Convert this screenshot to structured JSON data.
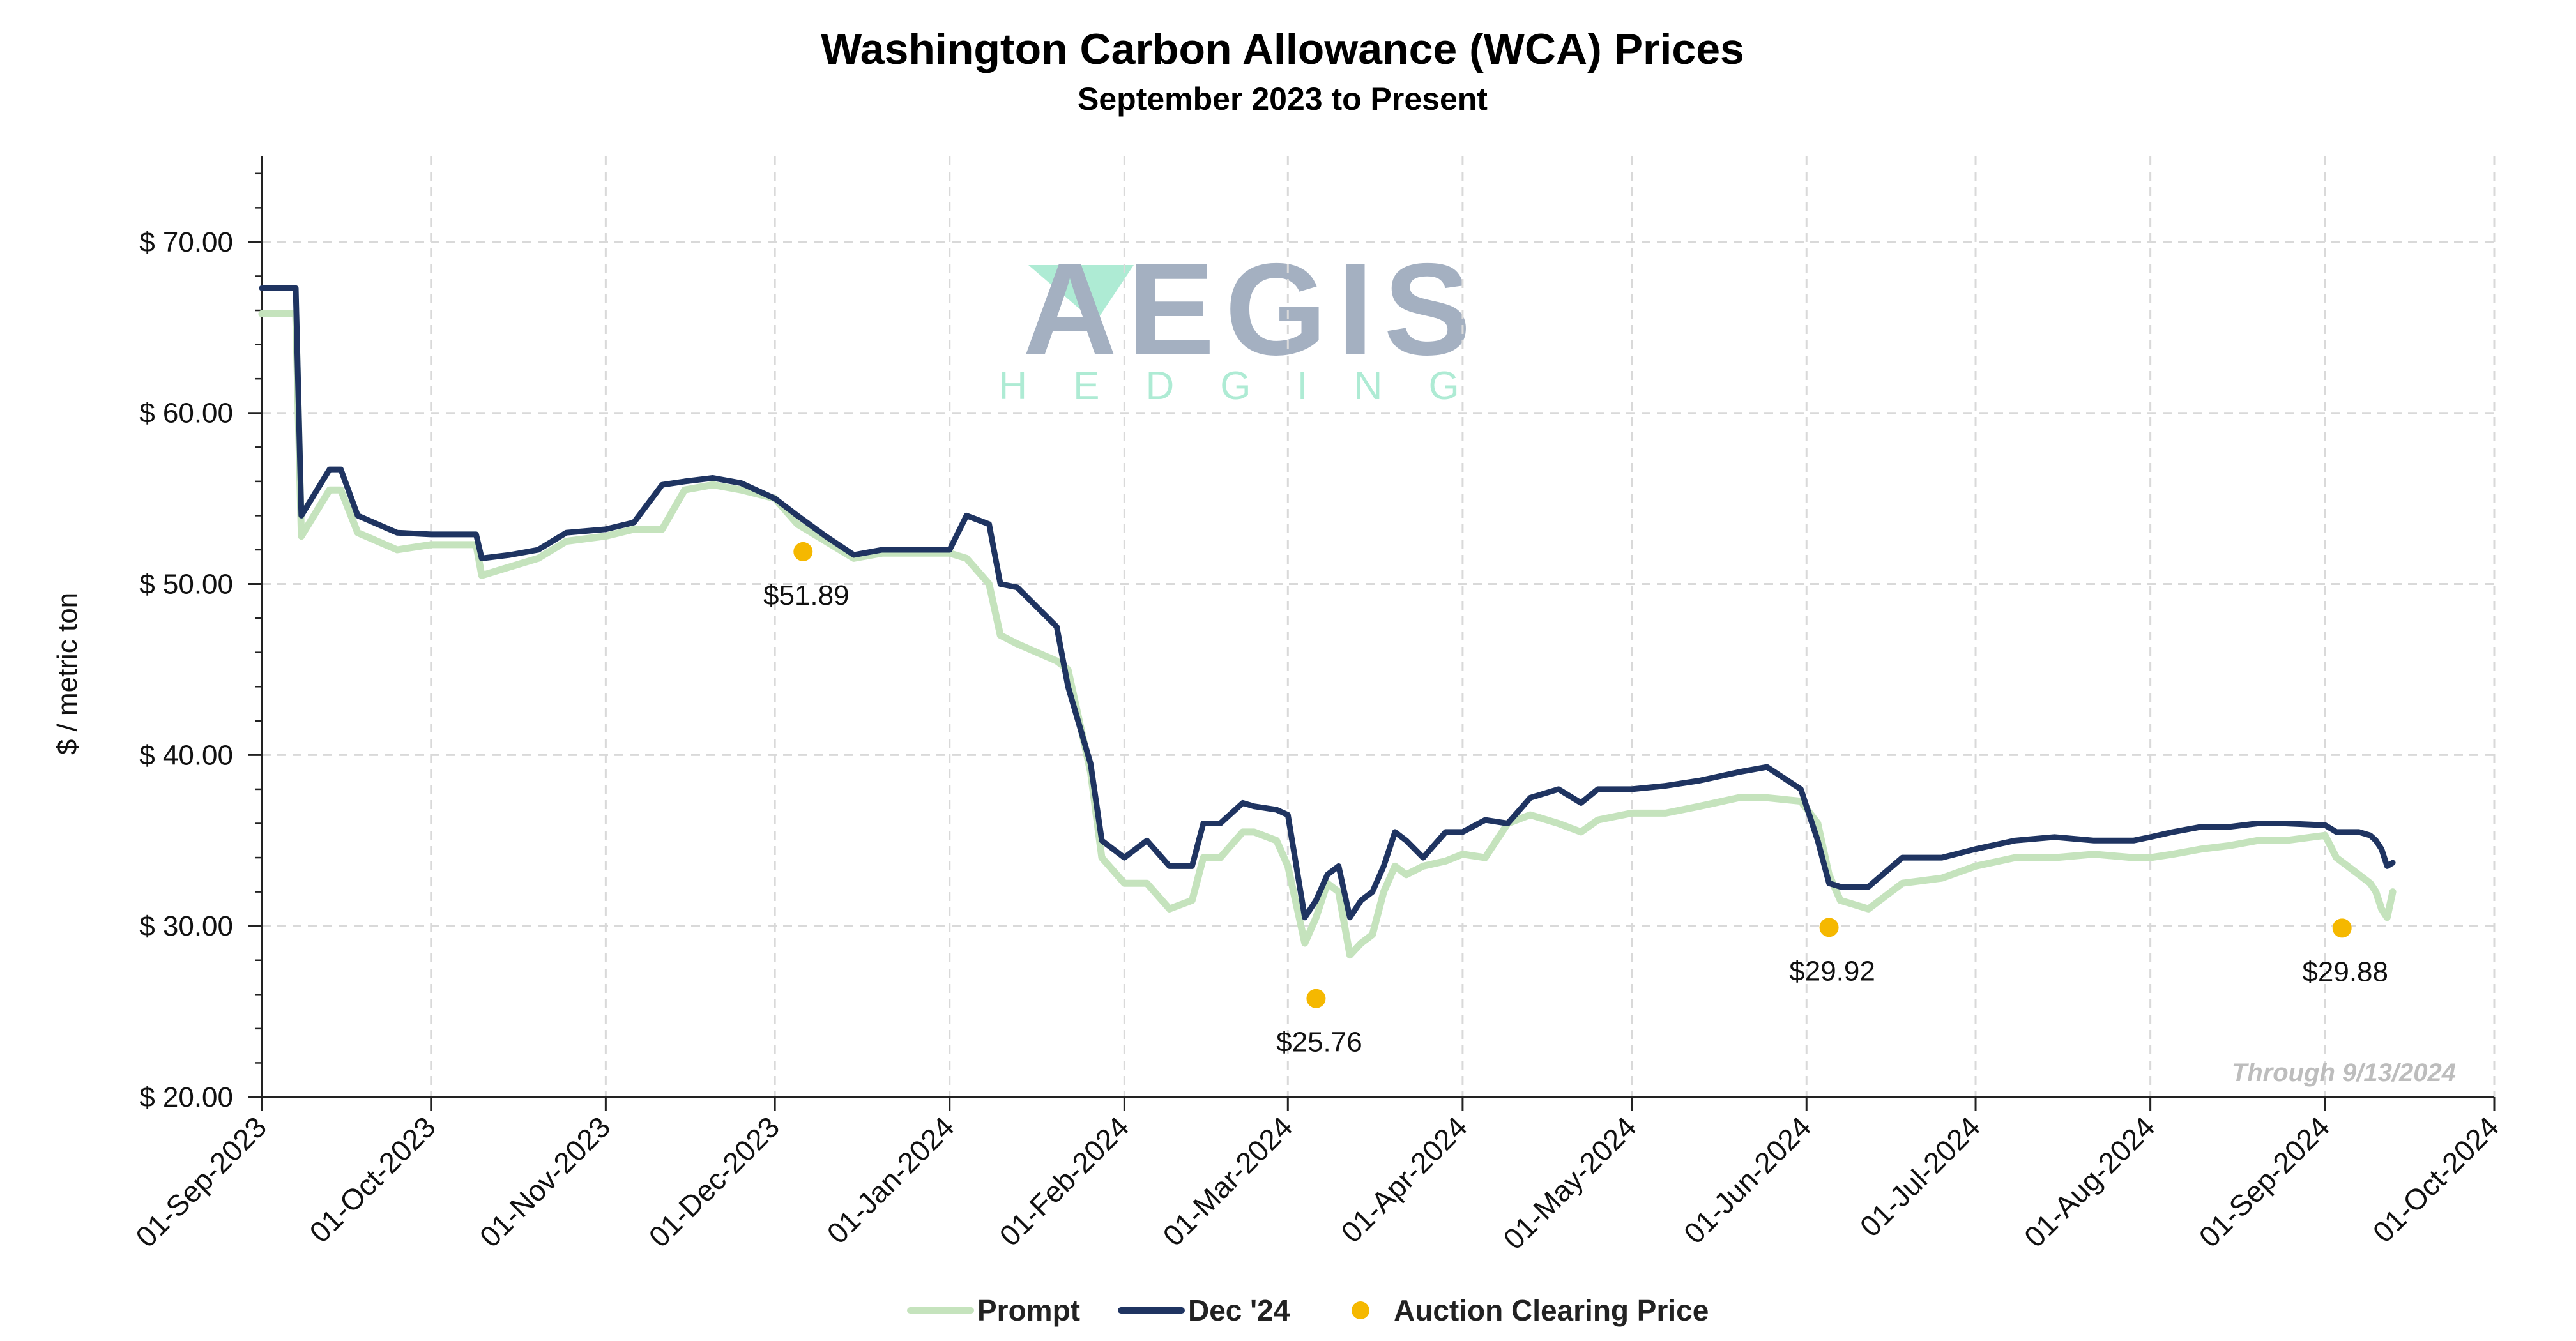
{
  "chart_data": {
    "type": "line",
    "title": "Washington Carbon Allowance (WCA) Prices",
    "subtitle": "September 2023 to Present",
    "ylabel": "$ / metric ton",
    "xlabel": "",
    "ylim": [
      20,
      75
    ],
    "yticks": [
      20,
      30,
      40,
      50,
      60,
      70
    ],
    "ytick_labels": [
      "$ 20.00",
      "$ 30.00",
      "$ 40.00",
      "$ 50.00",
      "$ 60.00",
      "$ 70.00"
    ],
    "xlim": [
      "2023-09-01",
      "2024-10-01"
    ],
    "xticks": [
      "2023-09-01",
      "2023-10-01",
      "2023-11-01",
      "2023-12-01",
      "2024-01-01",
      "2024-02-01",
      "2024-03-01",
      "2024-04-01",
      "2024-05-01",
      "2024-06-01",
      "2024-07-01",
      "2024-08-01",
      "2024-09-01",
      "2024-10-01"
    ],
    "xtick_labels": [
      "01-Sep-2023",
      "01-Oct-2023",
      "01-Nov-2023",
      "01-Dec-2023",
      "01-Jan-2024",
      "01-Feb-2024",
      "01-Mar-2024",
      "01-Apr-2024",
      "01-May-2024",
      "01-Jun-2024",
      "01-Jul-2024",
      "01-Aug-2024",
      "01-Sep-2024",
      "01-Oct-2024"
    ],
    "grid": true,
    "legend_position": "bottom",
    "annotation": "Through 9/13/2024",
    "series": [
      {
        "name": "Prompt",
        "color": "#c5e3bd",
        "x": [
          "2023-09-01",
          "2023-09-07",
          "2023-09-08",
          "2023-09-13",
          "2023-09-15",
          "2023-09-18",
          "2023-09-25",
          "2023-10-01",
          "2023-10-09",
          "2023-10-10",
          "2023-10-15",
          "2023-10-20",
          "2023-10-25",
          "2023-11-01",
          "2023-11-06",
          "2023-11-11",
          "2023-11-15",
          "2023-11-20",
          "2023-11-25",
          "2023-12-01",
          "2023-12-05",
          "2023-12-10",
          "2023-12-15",
          "2023-12-20",
          "2023-12-25",
          "2024-01-01",
          "2024-01-04",
          "2024-01-08",
          "2024-01-10",
          "2024-01-13",
          "2024-01-20",
          "2024-01-22",
          "2024-01-26",
          "2024-01-28",
          "2024-02-01",
          "2024-02-05",
          "2024-02-09",
          "2024-02-13",
          "2024-02-15",
          "2024-02-18",
          "2024-02-22",
          "2024-02-24",
          "2024-02-28",
          "2024-03-01",
          "2024-03-04",
          "2024-03-06",
          "2024-03-08",
          "2024-03-10",
          "2024-03-12",
          "2024-03-14",
          "2024-03-16",
          "2024-03-18",
          "2024-03-20",
          "2024-03-22",
          "2024-03-25",
          "2024-03-29",
          "2024-04-01",
          "2024-04-05",
          "2024-04-09",
          "2024-04-13",
          "2024-04-18",
          "2024-04-22",
          "2024-04-25",
          "2024-05-01",
          "2024-05-07",
          "2024-05-13",
          "2024-05-20",
          "2024-05-25",
          "2024-05-31",
          "2024-06-03",
          "2024-06-05",
          "2024-06-07",
          "2024-06-12",
          "2024-06-18",
          "2024-06-25",
          "2024-07-01",
          "2024-07-08",
          "2024-07-15",
          "2024-07-22",
          "2024-07-29",
          "2024-08-01",
          "2024-08-05",
          "2024-08-10",
          "2024-08-15",
          "2024-08-20",
          "2024-08-25",
          "2024-09-01",
          "2024-09-03",
          "2024-09-05",
          "2024-09-07",
          "2024-09-09",
          "2024-09-10",
          "2024-09-11",
          "2024-09-12",
          "2024-09-13"
        ],
        "values": [
          65.8,
          65.8,
          52.8,
          55.5,
          55.5,
          53.0,
          52.0,
          52.3,
          52.3,
          50.5,
          51.0,
          51.5,
          52.5,
          52.8,
          53.2,
          53.2,
          55.5,
          55.8,
          55.5,
          55.0,
          53.5,
          52.5,
          51.5,
          51.8,
          51.8,
          51.8,
          51.5,
          50.0,
          47.0,
          46.5,
          45.5,
          45.0,
          39.0,
          34.0,
          32.5,
          32.5,
          31.0,
          31.5,
          34.0,
          34.0,
          35.5,
          35.5,
          35.0,
          33.5,
          29.0,
          30.5,
          32.5,
          32.0,
          28.3,
          29.0,
          29.5,
          32.0,
          33.5,
          33.0,
          33.5,
          33.8,
          34.2,
          34.0,
          36.0,
          36.5,
          36.0,
          35.5,
          36.2,
          36.6,
          36.6,
          37.0,
          37.5,
          37.5,
          37.3,
          36.0,
          33.0,
          31.5,
          31.0,
          32.5,
          32.8,
          33.5,
          34.0,
          34.0,
          34.2,
          34.0,
          34.0,
          34.2,
          34.5,
          34.7,
          35.0,
          35.0,
          35.3,
          34.0,
          33.5,
          33.0,
          32.5,
          32.0,
          31.0,
          30.5,
          32.0
        ]
      },
      {
        "name": "Dec '24",
        "color": "#1f3461",
        "x": [
          "2023-09-01",
          "2023-09-07",
          "2023-09-08",
          "2023-09-13",
          "2023-09-15",
          "2023-09-18",
          "2023-09-25",
          "2023-10-01",
          "2023-10-09",
          "2023-10-10",
          "2023-10-15",
          "2023-10-20",
          "2023-10-25",
          "2023-11-01",
          "2023-11-06",
          "2023-11-11",
          "2023-11-15",
          "2023-11-20",
          "2023-11-25",
          "2023-12-01",
          "2023-12-05",
          "2023-12-10",
          "2023-12-15",
          "2023-12-20",
          "2023-12-25",
          "2024-01-01",
          "2024-01-04",
          "2024-01-08",
          "2024-01-10",
          "2024-01-13",
          "2024-01-20",
          "2024-01-22",
          "2024-01-26",
          "2024-01-28",
          "2024-02-01",
          "2024-02-05",
          "2024-02-09",
          "2024-02-13",
          "2024-02-15",
          "2024-02-18",
          "2024-02-22",
          "2024-02-24",
          "2024-02-28",
          "2024-03-01",
          "2024-03-04",
          "2024-03-06",
          "2024-03-08",
          "2024-03-10",
          "2024-03-12",
          "2024-03-14",
          "2024-03-16",
          "2024-03-18",
          "2024-03-20",
          "2024-03-22",
          "2024-03-25",
          "2024-03-29",
          "2024-04-01",
          "2024-04-05",
          "2024-04-09",
          "2024-04-13",
          "2024-04-18",
          "2024-04-22",
          "2024-04-25",
          "2024-05-01",
          "2024-05-07",
          "2024-05-13",
          "2024-05-20",
          "2024-05-25",
          "2024-05-31",
          "2024-06-03",
          "2024-06-05",
          "2024-06-07",
          "2024-06-12",
          "2024-06-18",
          "2024-06-25",
          "2024-07-01",
          "2024-07-08",
          "2024-07-15",
          "2024-07-22",
          "2024-07-29",
          "2024-08-01",
          "2024-08-05",
          "2024-08-10",
          "2024-08-15",
          "2024-08-20",
          "2024-08-25",
          "2024-09-01",
          "2024-09-03",
          "2024-09-05",
          "2024-09-07",
          "2024-09-09",
          "2024-09-10",
          "2024-09-11",
          "2024-09-12",
          "2024-09-13"
        ],
        "values": [
          67.3,
          67.3,
          54.0,
          56.7,
          56.7,
          54.0,
          53.0,
          52.9,
          52.9,
          51.5,
          51.7,
          52.0,
          53.0,
          53.2,
          53.6,
          55.8,
          56.0,
          56.2,
          55.9,
          55.0,
          54.0,
          52.8,
          51.7,
          52.0,
          52.0,
          52.0,
          54.0,
          53.5,
          50.0,
          49.8,
          47.5,
          44.0,
          39.5,
          35.0,
          34.0,
          35.0,
          33.5,
          33.5,
          36.0,
          36.0,
          37.2,
          37.0,
          36.8,
          36.5,
          30.5,
          31.5,
          33.0,
          33.5,
          30.5,
          31.5,
          32.0,
          33.5,
          35.5,
          35.0,
          34.0,
          35.5,
          35.5,
          36.2,
          36.0,
          37.5,
          38.0,
          37.2,
          38.0,
          38.0,
          38.2,
          38.5,
          39.0,
          39.3,
          38.0,
          35.0,
          32.5,
          32.3,
          32.3,
          34.0,
          34.0,
          34.5,
          35.0,
          35.2,
          35.0,
          35.0,
          35.2,
          35.5,
          35.8,
          35.8,
          36.0,
          36.0,
          35.9,
          35.5,
          35.5,
          35.5,
          35.3,
          35.0,
          34.5,
          33.5,
          33.7
        ]
      },
      {
        "name": "Auction Clearing Price",
        "color": "#f5b800",
        "type": "scatter",
        "x": [
          "2023-12-06",
          "2024-03-06",
          "2024-06-05",
          "2024-09-04"
        ],
        "values": [
          51.89,
          25.76,
          29.92,
          29.88
        ],
        "labels": [
          "$51.89",
          "$25.76",
          "$29.92",
          "$29.88"
        ]
      }
    ]
  }
}
